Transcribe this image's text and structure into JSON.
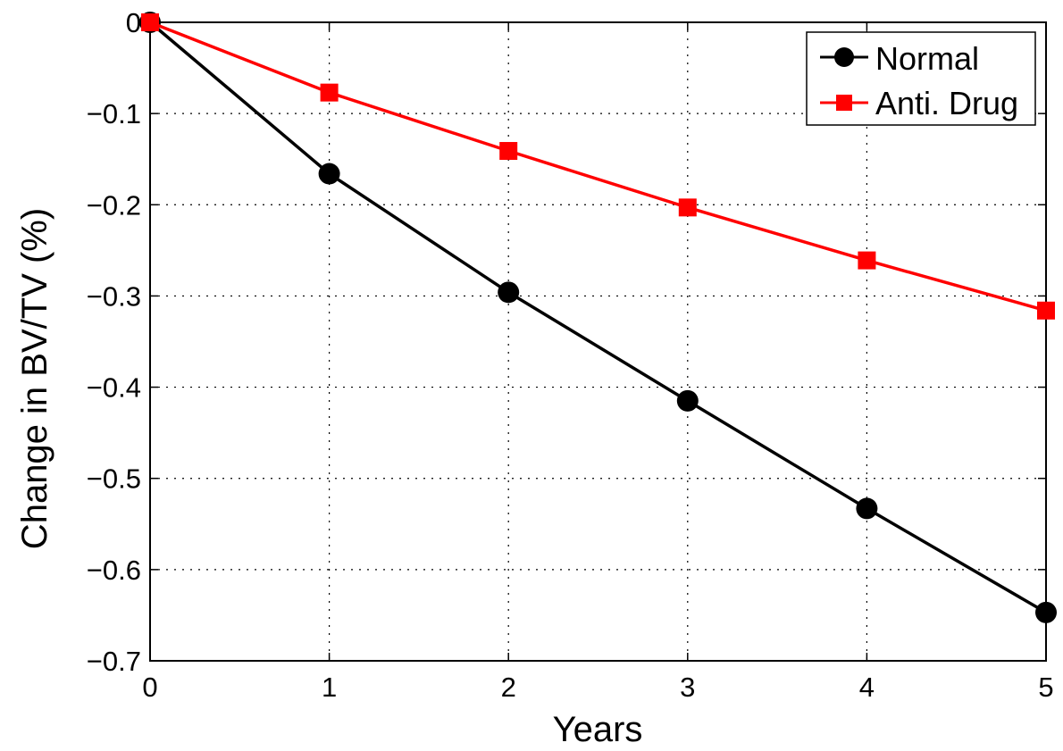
{
  "chart_data": {
    "type": "line",
    "title": "",
    "xlabel": "Years",
    "ylabel": "Change in BV/TV (%)",
    "xlim": [
      0,
      5
    ],
    "ylim": [
      -0.7,
      0
    ],
    "xticks": [
      0,
      1,
      2,
      3,
      4,
      5
    ],
    "xtick_labels": [
      "0",
      "1",
      "2",
      "3",
      "4",
      "5"
    ],
    "yticks": [
      0,
      -0.1,
      -0.2,
      -0.3,
      -0.4,
      -0.5,
      -0.6,
      -0.7
    ],
    "ytick_labels": [
      "0",
      "−0.1",
      "−0.2",
      "−0.3",
      "−0.4",
      "−0.5",
      "−0.6",
      "−0.7"
    ],
    "grid": true,
    "legend_position": "top-right",
    "x": [
      0,
      1,
      2,
      3,
      4,
      5
    ],
    "series": [
      {
        "name": "Normal",
        "values": [
          0,
          -0.166,
          -0.296,
          -0.415,
          -0.533,
          -0.647
        ],
        "color": "#000000",
        "marker": "circle"
      },
      {
        "name": "Anti. Drug",
        "values": [
          0,
          -0.077,
          -0.141,
          -0.203,
          -0.261,
          -0.316
        ],
        "color": "#ff0000",
        "marker": "square"
      }
    ]
  }
}
